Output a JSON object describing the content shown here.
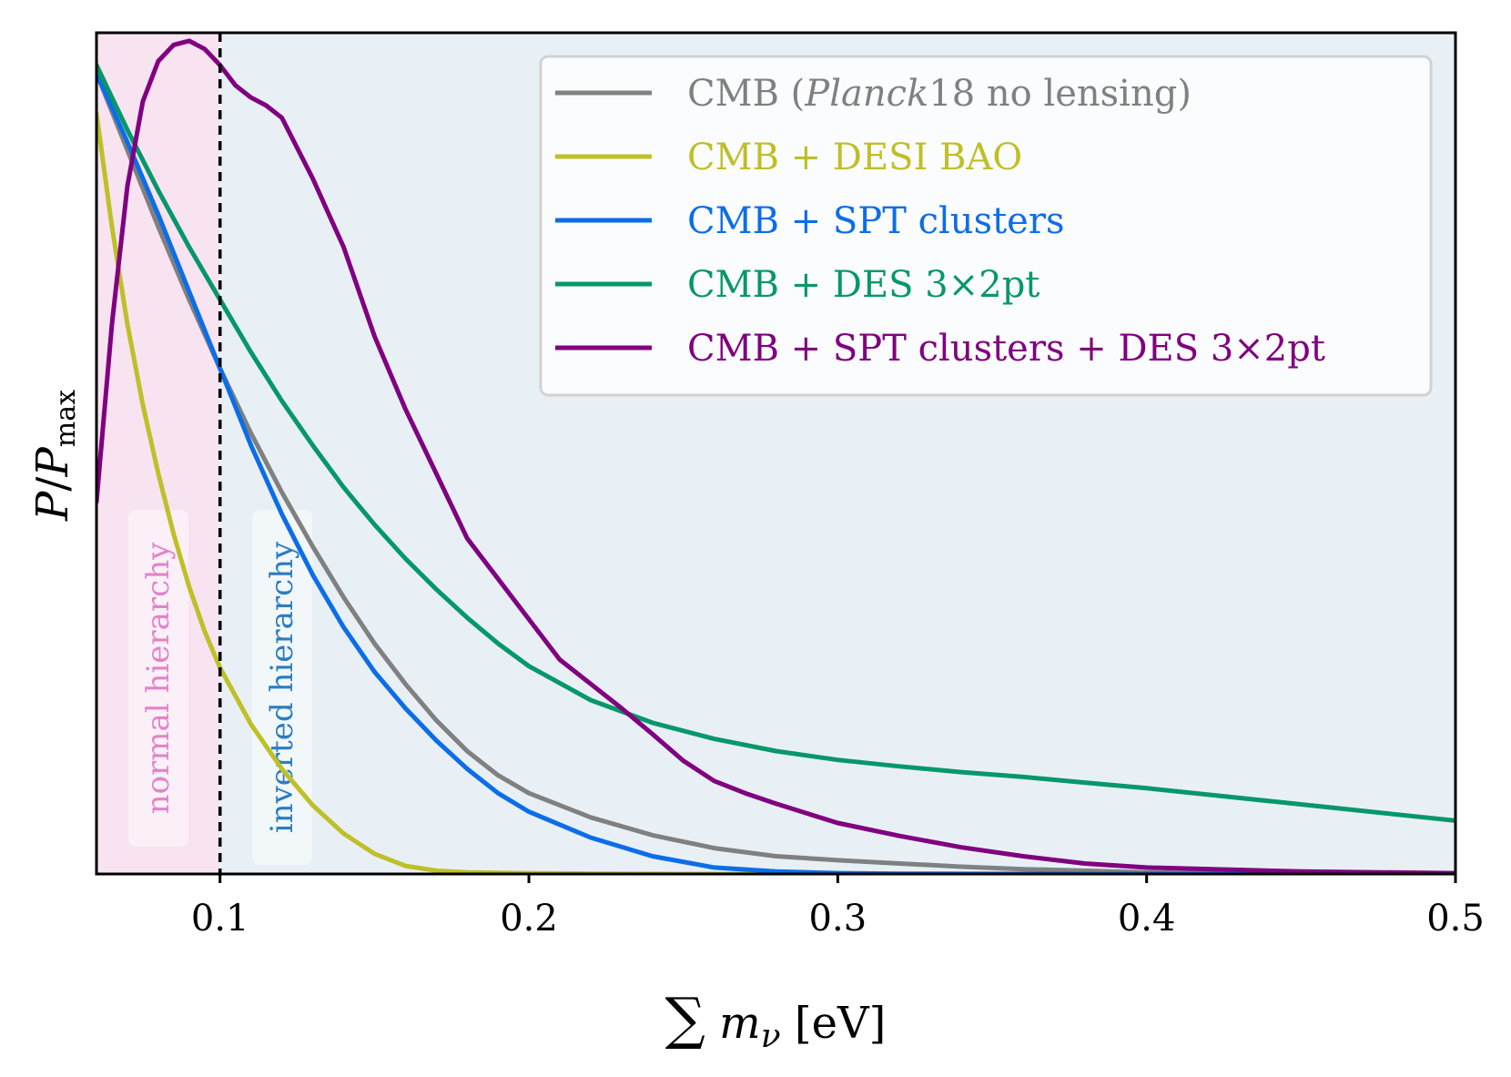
{
  "chart_data": {
    "type": "line",
    "title": "",
    "xlabel": "∑ mν [eV]",
    "ylabel": "P/Pmax",
    "xlim": [
      0.06,
      0.5
    ],
    "ylim": [
      0,
      1.04
    ],
    "xticks": [
      0.1,
      0.2,
      0.3,
      0.4,
      0.5
    ],
    "xtick_labels": [
      "0.1",
      "0.2",
      "0.3",
      "0.4",
      "0.5"
    ],
    "grid": false,
    "legend_position": "top-right",
    "reference_line": {
      "x": 0.1,
      "style": "dashed"
    },
    "regions": [
      {
        "name": "normal hierarchy",
        "x_range": [
          0.06,
          0.1
        ],
        "color": "#f8e3f1",
        "label_color": "#e284c8"
      },
      {
        "name": "inverted hierarchy",
        "x_range": [
          0.1,
          0.5
        ],
        "color": "#e8f0f6",
        "label_color": "#2b7dc0"
      }
    ],
    "series": [
      {
        "name": "CMB (Planck18 no lensing)",
        "label_parts": [
          "CMB (",
          "Planck",
          "18 no lensing)"
        ],
        "color": "#808080",
        "x": [
          0.06,
          0.07,
          0.08,
          0.09,
          0.1,
          0.11,
          0.12,
          0.13,
          0.14,
          0.15,
          0.16,
          0.17,
          0.18,
          0.19,
          0.2,
          0.22,
          0.24,
          0.26,
          0.28,
          0.3,
          0.32,
          0.34,
          0.36,
          0.38,
          0.4,
          0.42,
          0.44,
          0.46,
          0.48,
          0.5
        ],
        "y": [
          0.99,
          0.895,
          0.8,
          0.71,
          0.625,
          0.545,
          0.472,
          0.405,
          0.342,
          0.285,
          0.235,
          0.19,
          0.152,
          0.122,
          0.1,
          0.07,
          0.048,
          0.032,
          0.022,
          0.017,
          0.013,
          0.009,
          0.006,
          0.004,
          0.002,
          0.001,
          0.0005,
          0.0002,
          0.0001,
          0
        ]
      },
      {
        "name": "CMB + DESI BAO",
        "color": "#bfbf28",
        "x": [
          0.06,
          0.065,
          0.07,
          0.075,
          0.08,
          0.085,
          0.09,
          0.095,
          0.1,
          0.11,
          0.12,
          0.13,
          0.14,
          0.15,
          0.16,
          0.17,
          0.18,
          0.2,
          0.22,
          0.25,
          0.3,
          0.5
        ],
        "y": [
          0.94,
          0.8,
          0.68,
          0.58,
          0.495,
          0.42,
          0.355,
          0.3,
          0.255,
          0.185,
          0.13,
          0.085,
          0.05,
          0.025,
          0.01,
          0.004,
          0.002,
          0.001,
          0.0005,
          0,
          0,
          0
        ]
      },
      {
        "name": "CMB + SPT clusters",
        "color": "#0c6de8",
        "x": [
          0.06,
          0.07,
          0.08,
          0.09,
          0.1,
          0.11,
          0.12,
          0.13,
          0.14,
          0.15,
          0.16,
          0.17,
          0.18,
          0.19,
          0.2,
          0.22,
          0.24,
          0.26,
          0.28,
          0.3,
          0.32,
          0.35,
          0.4,
          0.5
        ],
        "y": [
          0.99,
          0.905,
          0.815,
          0.72,
          0.625,
          0.53,
          0.445,
          0.37,
          0.305,
          0.25,
          0.205,
          0.165,
          0.13,
          0.1,
          0.077,
          0.045,
          0.022,
          0.008,
          0.003,
          0.001,
          0.0003,
          0.0001,
          0,
          0
        ]
      },
      {
        "name": "CMB + DES 3×2pt",
        "color": "#06976a",
        "x": [
          0.06,
          0.07,
          0.08,
          0.09,
          0.1,
          0.11,
          0.12,
          0.13,
          0.14,
          0.15,
          0.16,
          0.17,
          0.18,
          0.19,
          0.2,
          0.22,
          0.24,
          0.26,
          0.28,
          0.3,
          0.32,
          0.34,
          0.36,
          0.38,
          0.4,
          0.42,
          0.44,
          0.46,
          0.48,
          0.5
        ],
        "y": [
          1.0,
          0.92,
          0.845,
          0.775,
          0.71,
          0.645,
          0.585,
          0.53,
          0.478,
          0.432,
          0.39,
          0.352,
          0.317,
          0.285,
          0.257,
          0.215,
          0.187,
          0.167,
          0.152,
          0.141,
          0.133,
          0.126,
          0.12,
          0.113,
          0.106,
          0.098,
          0.09,
          0.082,
          0.074,
          0.066
        ]
      },
      {
        "name": "CMB + SPT clusters + DES 3×2pt",
        "color": "#800080",
        "x": [
          0.06,
          0.065,
          0.07,
          0.075,
          0.08,
          0.085,
          0.09,
          0.095,
          0.1,
          0.105,
          0.11,
          0.115,
          0.12,
          0.13,
          0.14,
          0.15,
          0.16,
          0.17,
          0.18,
          0.19,
          0.2,
          0.21,
          0.22,
          0.23,
          0.24,
          0.25,
          0.26,
          0.27,
          0.28,
          0.29,
          0.3,
          0.32,
          0.34,
          0.36,
          0.38,
          0.4,
          0.45,
          0.5
        ],
        "y": [
          0.46,
          0.68,
          0.85,
          0.955,
          1.005,
          1.025,
          1.03,
          1.02,
          1.0,
          0.975,
          0.96,
          0.95,
          0.935,
          0.86,
          0.775,
          0.665,
          0.575,
          0.495,
          0.415,
          0.365,
          0.315,
          0.265,
          0.235,
          0.205,
          0.173,
          0.14,
          0.115,
          0.1,
          0.087,
          0.075,
          0.063,
          0.047,
          0.033,
          0.022,
          0.013,
          0.008,
          0.003,
          0.001
        ]
      }
    ]
  }
}
